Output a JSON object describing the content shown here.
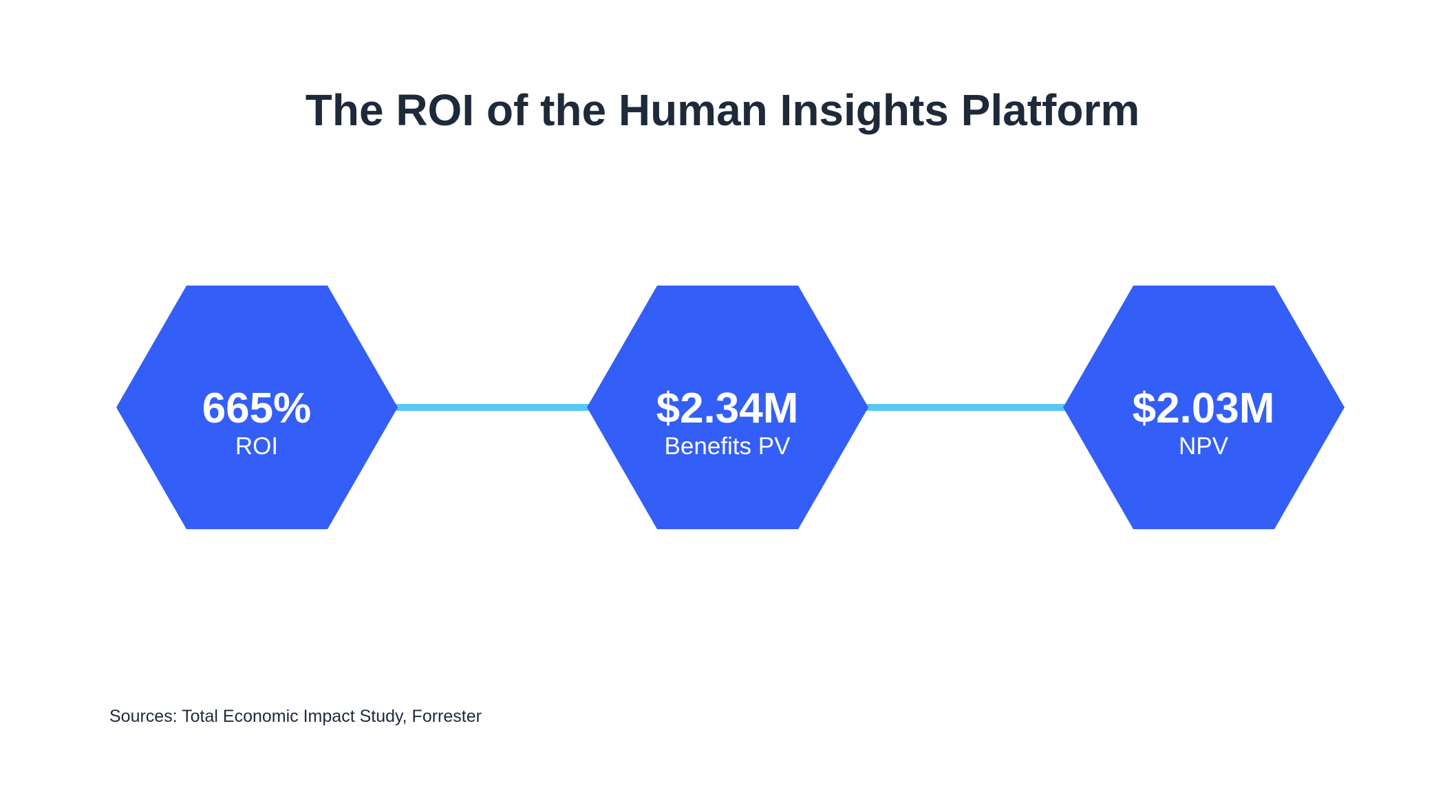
{
  "title": "The ROI of the Human Insights Platform",
  "colors": {
    "title_text": "#1e2a3a",
    "hexagon_fill": "#335ef7",
    "connector": "#57c7f5",
    "hexagon_text": "#ffffff"
  },
  "metrics": [
    {
      "value": "665%",
      "label": "ROI"
    },
    {
      "value": "$2.34M",
      "label": "Benefits PV"
    },
    {
      "value": "$2.03M",
      "label": "NPV"
    }
  ],
  "source": "Sources: Total Economic Impact Study, Forrester"
}
